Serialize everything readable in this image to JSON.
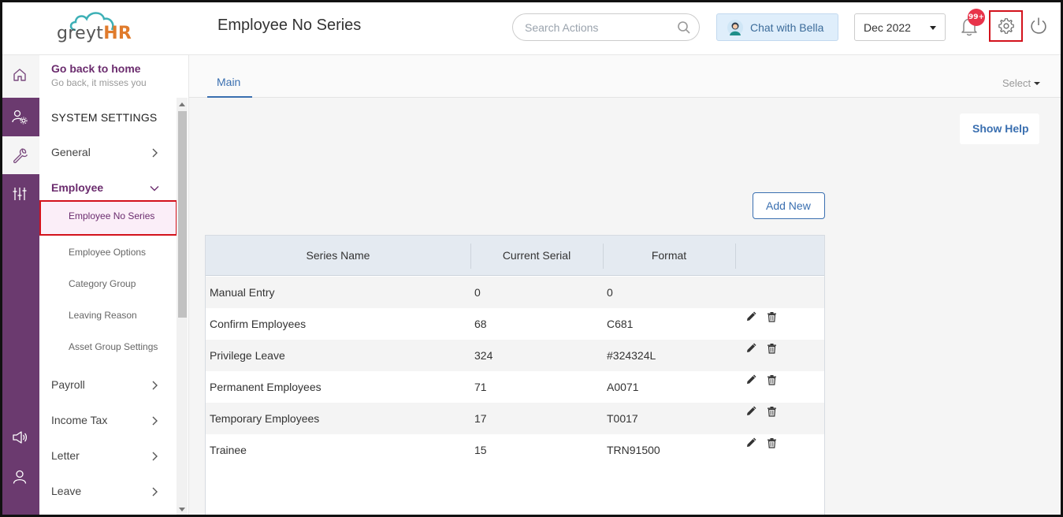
{
  "app": {
    "logo_prefix": "greyt",
    "logo_suffix": "HR",
    "page_title": "Employee No Series"
  },
  "header": {
    "search_placeholder": "Search Actions",
    "chat_label": "Chat with Bella",
    "month": "Dec 2022",
    "notification_badge": "99+",
    "icons": [
      "search-icon",
      "bella-avatar-icon",
      "bell-icon",
      "gear-icon",
      "power-icon"
    ]
  },
  "sidebar": {
    "home_title": "Go back to home",
    "home_subtitle": "Go back, it misses you",
    "section_title": "SYSTEM SETTINGS",
    "items": [
      {
        "label": "General"
      },
      {
        "label": "Employee"
      },
      {
        "label": "Payroll"
      },
      {
        "label": "Income Tax"
      },
      {
        "label": "Letter"
      },
      {
        "label": "Leave"
      }
    ],
    "employee_subitems": [
      {
        "label": "Employee No Series"
      },
      {
        "label": "Employee Options"
      },
      {
        "label": "Category Group"
      },
      {
        "label": "Leaving Reason"
      },
      {
        "label": "Asset Group Settings"
      }
    ]
  },
  "rail": {
    "icons": [
      "home-icon",
      "user-settings-icon",
      "wrench-icon",
      "sliders-icon",
      "megaphone-icon",
      "user-icon"
    ]
  },
  "main": {
    "tabs": [
      {
        "label": "Main"
      }
    ],
    "select_label": "Select",
    "show_help_label": "Show Help",
    "add_new_label": "Add New"
  },
  "table": {
    "headers": [
      "Series Name",
      "Current Serial",
      "Format",
      ""
    ],
    "rows": [
      {
        "name": "Manual Entry",
        "serial": "0",
        "format": "0",
        "actions": false
      },
      {
        "name": "Confirm Employees",
        "serial": "68",
        "format": "C681",
        "actions": true
      },
      {
        "name": "Privilege Leave",
        "serial": "324",
        "format": "#324324L",
        "actions": true
      },
      {
        "name": "Permanent Employees",
        "serial": "71",
        "format": "A0071",
        "actions": true
      },
      {
        "name": "Temporary Employees",
        "serial": "17",
        "format": "T0017",
        "actions": true
      },
      {
        "name": "Trainee",
        "serial": "15",
        "format": "TRN91500",
        "actions": true
      }
    ]
  },
  "colors": {
    "brand_purple": "#6b3a6f",
    "accent_blue": "#3a6fb0",
    "highlight_red": "#d3121c",
    "badge_red": "#e8334a",
    "logo_orange": "#e07b2c"
  }
}
